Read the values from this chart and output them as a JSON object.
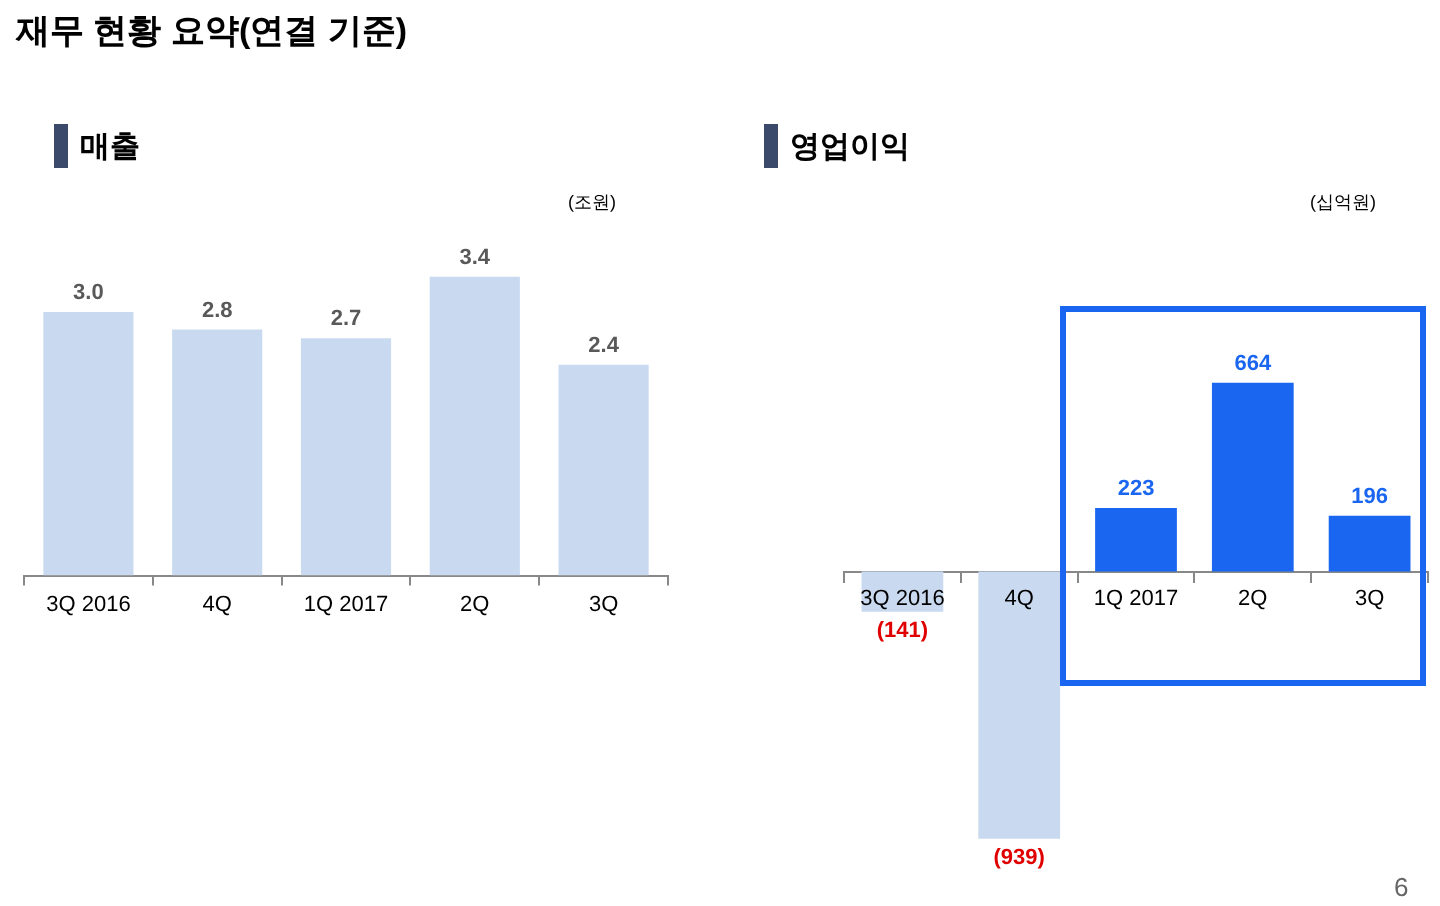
{
  "chart_data": [
    {
      "type": "bar",
      "title": "매출",
      "annotations": [
        "재무 현황 요약(연결 기준)",
        "(조원)"
      ],
      "categories": [
        "3Q 2016",
        "4Q",
        "1Q 2017",
        "2Q",
        "3Q"
      ],
      "values": [
        3.0,
        2.8,
        2.7,
        3.4,
        2.4
      ],
      "color": "#c9daf0",
      "value_labels": [
        "3.0",
        "2.8",
        "2.7",
        "3.4",
        "2.4"
      ],
      "tick_labels": "x",
      "grid": false,
      "legend": false
    },
    {
      "type": "bar",
      "title": "영업이익",
      "annotations": [
        "(십억원)",
        "6"
      ],
      "categories": [
        "3Q 2016",
        "4Q",
        "1Q 2017",
        "2Q",
        "3Q"
      ],
      "values": [
        -141,
        -939,
        223,
        664,
        196
      ],
      "colors": [
        "#c9daf0",
        "#c9daf0",
        "#1a66f0",
        "#1a66f0",
        "#1a66f0"
      ],
      "value_labels": [
        "(141)",
        "(939)",
        "223",
        "664",
        "196"
      ],
      "tick_labels": "x",
      "grid": false,
      "legend": false
    }
  ]
}
